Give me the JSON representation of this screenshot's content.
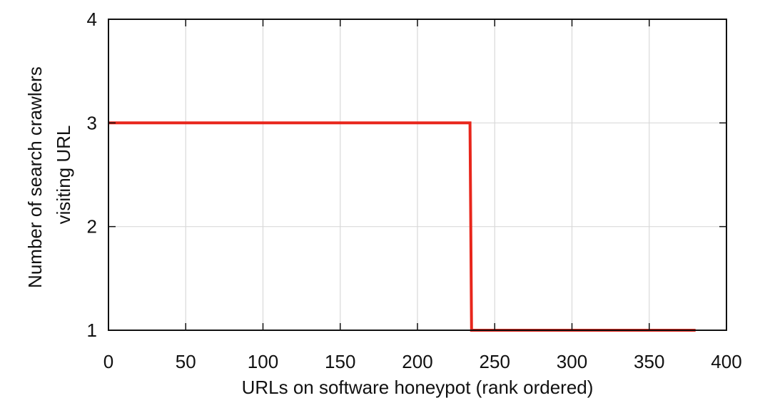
{
  "chart_data": {
    "type": "line",
    "xlabel": "URLs on software honeypot (rank ordered)",
    "ylabel": [
      "Number of search crawlers",
      "visiting URL"
    ],
    "xlim": [
      0,
      400
    ],
    "ylim": [
      1,
      4
    ],
    "xticks": [
      0,
      50,
      100,
      150,
      200,
      250,
      300,
      350,
      400
    ],
    "yticks": [
      1,
      2,
      3,
      4
    ],
    "grid": true,
    "series": [
      {
        "color": "#e8261c",
        "x": [
          0,
          234,
          235,
          380
        ],
        "y": [
          3,
          3,
          1,
          1
        ]
      }
    ]
  }
}
